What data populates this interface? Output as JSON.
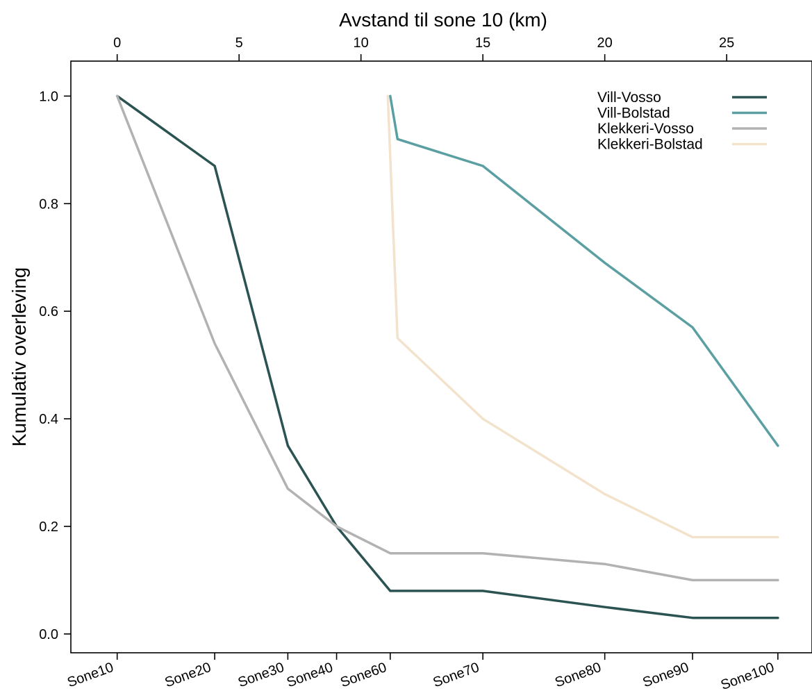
{
  "chart_data": {
    "type": "line",
    "top_axis": {
      "label": "Avstand til sone 10 (km)",
      "ticks": [
        0,
        5,
        10,
        15,
        20,
        25
      ],
      "range": [
        -1.9,
        28.5
      ]
    },
    "bottom_axis": {
      "categories": [
        {
          "label": "Sone10",
          "km": 0
        },
        {
          "label": "Sone20",
          "km": 4
        },
        {
          "label": "Sone30",
          "km": 7
        },
        {
          "label": "Sone40",
          "km": 9
        },
        {
          "label": "Sone60",
          "km": 11.2
        },
        {
          "label": "Sone70",
          "km": 15
        },
        {
          "label": "Sone80",
          "km": 20
        },
        {
          "label": "Sone90",
          "km": 23.6
        },
        {
          "label": "Sone100",
          "km": 27.1
        }
      ]
    },
    "ylabel": "Kumulativ overleving",
    "ylim": [
      -0.035,
      1.065
    ],
    "yticks": [
      "0.0",
      "0.2",
      "0.4",
      "0.6",
      "0.8",
      "1.0"
    ],
    "legend_position": "top-right",
    "series": [
      {
        "name": "Vill-Vosso",
        "color": "#2b5352",
        "points": [
          [
            0,
            1.0
          ],
          [
            4,
            0.87
          ],
          [
            7,
            0.35
          ],
          [
            9,
            0.2
          ],
          [
            11.2,
            0.08
          ],
          [
            15,
            0.08
          ],
          [
            20,
            0.05
          ],
          [
            23.6,
            0.03
          ],
          [
            27.1,
            0.03
          ]
        ]
      },
      {
        "name": "Vill-Bolstad",
        "color": "#5b9fa2",
        "points": [
          [
            11.2,
            1.0
          ],
          [
            11.5,
            0.92
          ],
          [
            15,
            0.87
          ],
          [
            20,
            0.69
          ],
          [
            23.6,
            0.57
          ],
          [
            27.1,
            0.35
          ]
        ]
      },
      {
        "name": "Klekkeri-Vosso",
        "color": "#b2b2b2",
        "points": [
          [
            0,
            1.0
          ],
          [
            4,
            0.54
          ],
          [
            7,
            0.27
          ],
          [
            9,
            0.2
          ],
          [
            11.2,
            0.15
          ],
          [
            15,
            0.15
          ],
          [
            20,
            0.13
          ],
          [
            23.6,
            0.1
          ],
          [
            27.1,
            0.1
          ]
        ]
      },
      {
        "name": "Klekkeri-Bolstad",
        "color": "#f3e3cc",
        "points": [
          [
            11.1,
            1.0
          ],
          [
            11.5,
            0.55
          ],
          [
            15,
            0.4
          ],
          [
            20,
            0.26
          ],
          [
            23.6,
            0.18
          ],
          [
            27.1,
            0.18
          ]
        ]
      }
    ]
  }
}
